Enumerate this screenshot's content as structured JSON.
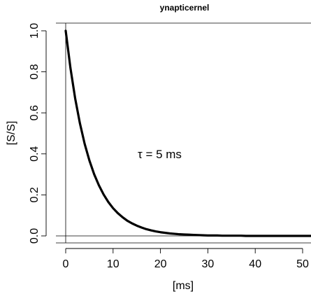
{
  "chart_data": {
    "type": "line",
    "title": "ynapticernel",
    "xlabel": "[ms]",
    "ylabel": "[S/S]",
    "xlim": [
      -2,
      52
    ],
    "ylim": [
      -0.02,
      1.04
    ],
    "x_ticks": [
      0,
      10,
      20,
      30,
      40,
      50
    ],
    "y_ticks": [
      0.0,
      0.2,
      0.4,
      0.6,
      0.8,
      1.0
    ],
    "y_tick_labels": [
      "0.0",
      "0.2",
      "0.4",
      "0.6",
      "0.8",
      "1.0"
    ],
    "reference_lines": {
      "vertical_x": 0,
      "horizontal_y": 0
    },
    "annotation": "τ = 5  ms",
    "series": [
      {
        "color": "#000000",
        "x": [
          0,
          1,
          2,
          3,
          4,
          5,
          6,
          7,
          8,
          9,
          10,
          11,
          12,
          13,
          14,
          15,
          16,
          17,
          18,
          19,
          20,
          21,
          22,
          23,
          24,
          25,
          26,
          27,
          28,
          29,
          30,
          31,
          32,
          33,
          34,
          35,
          36,
          37,
          38,
          39,
          40,
          41,
          42,
          43,
          44,
          45,
          46,
          47,
          48,
          49,
          50,
          51,
          52
        ],
        "y": [
          1.0,
          0.819,
          0.67,
          0.549,
          0.449,
          0.368,
          0.301,
          0.247,
          0.202,
          0.165,
          0.135,
          0.111,
          0.091,
          0.074,
          0.061,
          0.05,
          0.041,
          0.033,
          0.027,
          0.022,
          0.018,
          0.015,
          0.012,
          0.01,
          0.008,
          0.007,
          0.006,
          0.005,
          0.004,
          0.003,
          0.002,
          0.002,
          0.002,
          0.001,
          0.001,
          0.001,
          0.001,
          0.001,
          0.0,
          0.0,
          0.0,
          0.0,
          0.0,
          0.0,
          0.0,
          0.0,
          0.0,
          0.0,
          0.0,
          0.0,
          0.0,
          0.0,
          0.0
        ]
      }
    ]
  }
}
